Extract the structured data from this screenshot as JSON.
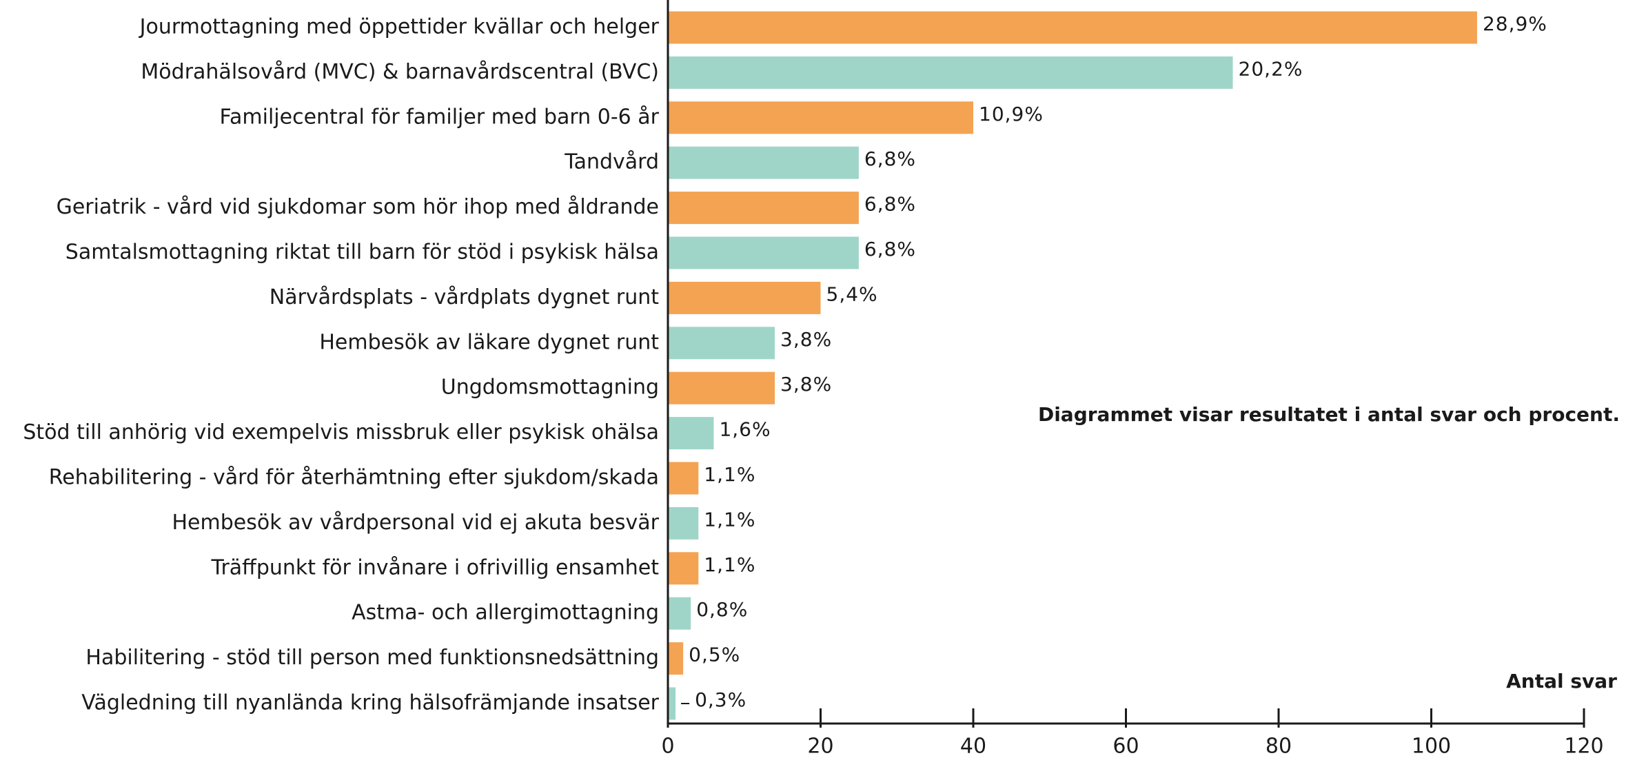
{
  "chart_data": {
    "type": "barh",
    "categories": [
      "Jourmottagning med öppettider kvällar och helger",
      "Mödrahälsovård (MVC) & barnavårdscentral (BVC)",
      "Familjecentral för familjer med barn 0-6 år",
      "Tandvård",
      "Geriatrik - vård vid sjukdomar som hör ihop med åldrande",
      "Samtalsmottagning riktat till barn för stöd i psykisk hälsa",
      "Närvårdsplats - vårdplats dygnet runt",
      "Hembesök av läkare dygnet runt",
      "Ungdomsmottagning",
      "Stöd till anhörig vid exempelvis missbruk eller psykisk ohälsa",
      "Rehabilitering - vård för återhämtning efter sjukdom/skada",
      "Hembesök av vårdpersonal vid ej akuta besvär",
      "Träffpunkt för invånare i ofrivillig ensamhet",
      "Astma- och allergimottagning",
      "Habilitering - stöd till person med funktionsnedsättning",
      "Vägledning till nyanlända kring hälsofrämjande insatser"
    ],
    "values": [
      106,
      74,
      40,
      25,
      25,
      25,
      20,
      14,
      14,
      6,
      4,
      4,
      4,
      3,
      2,
      1
    ],
    "percent_labels": [
      "28,9%",
      "20,2%",
      "10,9%",
      "6,8%",
      "6,8%",
      "6,8%",
      "5,4%",
      "3,8%",
      "3,8%",
      "1,6%",
      "1,1%",
      "1,1%",
      "1,1%",
      "0,8%",
      "0,5%",
      "0,3%"
    ],
    "colors": [
      "#f4a352",
      "#9fd5c8"
    ],
    "xlim": [
      0,
      120
    ],
    "xticks": [
      0,
      20,
      40,
      60,
      80,
      100,
      120
    ],
    "xlabel": "Antal svar",
    "annotation": "Diagrammet visar resultatet i antal svar och procent."
  }
}
